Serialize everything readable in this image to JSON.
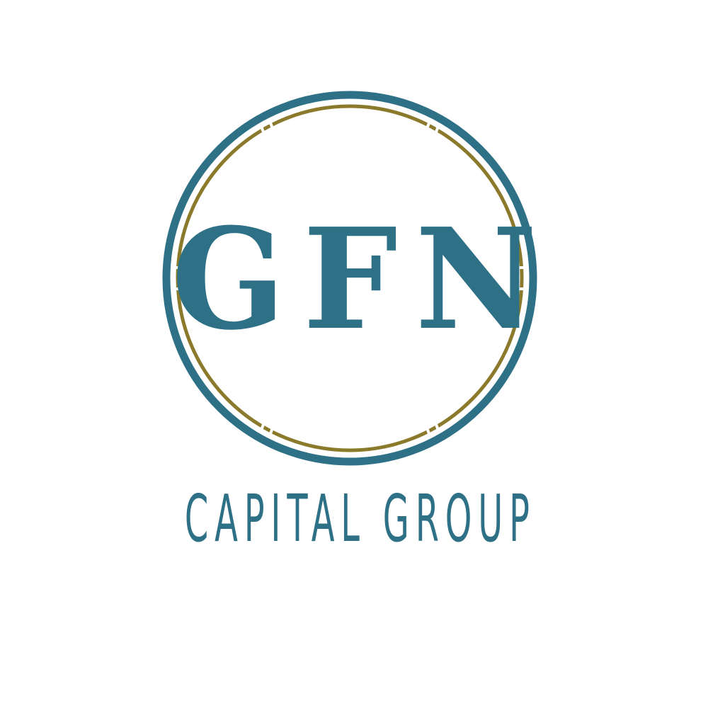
{
  "logo": {
    "monogram": "GFN",
    "tagline": "CAPITAL GROUP",
    "colors": {
      "primary": "#2e7086",
      "accent": "#8b7a2b",
      "background": "#ffffff"
    }
  }
}
